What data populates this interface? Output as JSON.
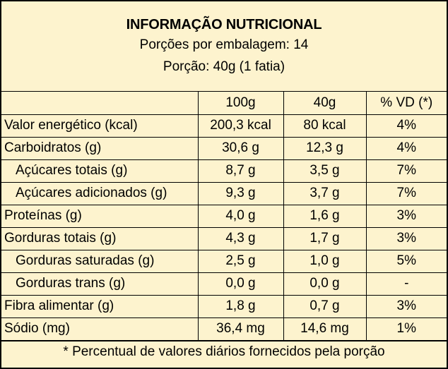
{
  "header": {
    "title": "INFORMAÇÃO NUTRICIONAL",
    "servings_per_package": "Porções por embalagem: 14",
    "serving_size": "Porção: 40g (1 fatia)"
  },
  "columns": [
    "",
    "100g",
    "40g",
    "% VD (*)"
  ],
  "rows": [
    {
      "name": "Valor energético (kcal)",
      "per100": "200,3 kcal",
      "perServing": "80 kcal",
      "vd": "4%"
    },
    {
      "name": "Carboidratos (g)",
      "per100": "30,6 g",
      "perServing": "12,3 g",
      "vd": "4%"
    },
    {
      "name": "Açúcares totais (g)",
      "per100": "8,7 g",
      "perServing": "3,5 g",
      "vd": "7%"
    },
    {
      "name": "Açúcares adicionados (g)",
      "per100": "9,3 g",
      "perServing": "3,7 g",
      "vd": "7%"
    },
    {
      "name": "Proteínas (g)",
      "per100": "4,0 g",
      "perServing": "1,6 g",
      "vd": "3%"
    },
    {
      "name": "Gorduras totais (g)",
      "per100": "4,3 g",
      "perServing": "1,7 g",
      "vd": "3%"
    },
    {
      "name": "Gorduras saturadas (g)",
      "per100": "2,5 g",
      "perServing": "1,0 g",
      "vd": "5%"
    },
    {
      "name": "Gorduras trans (g)",
      "per100": "0,0 g",
      "perServing": "0,0 g",
      "vd": "-"
    },
    {
      "name": "Fibra alimentar (g)",
      "per100": "1,8 g",
      "perServing": "0,7 g",
      "vd": "3%"
    },
    {
      "name": "Sódio (mg)",
      "per100": "36,4 mg",
      "perServing": "14,6 mg",
      "vd": "1%"
    }
  ],
  "footer": "* Percentual de valores diários fornecidos pela porção",
  "colors": {
    "background": "#fdf3ce",
    "border": "#000000"
  }
}
